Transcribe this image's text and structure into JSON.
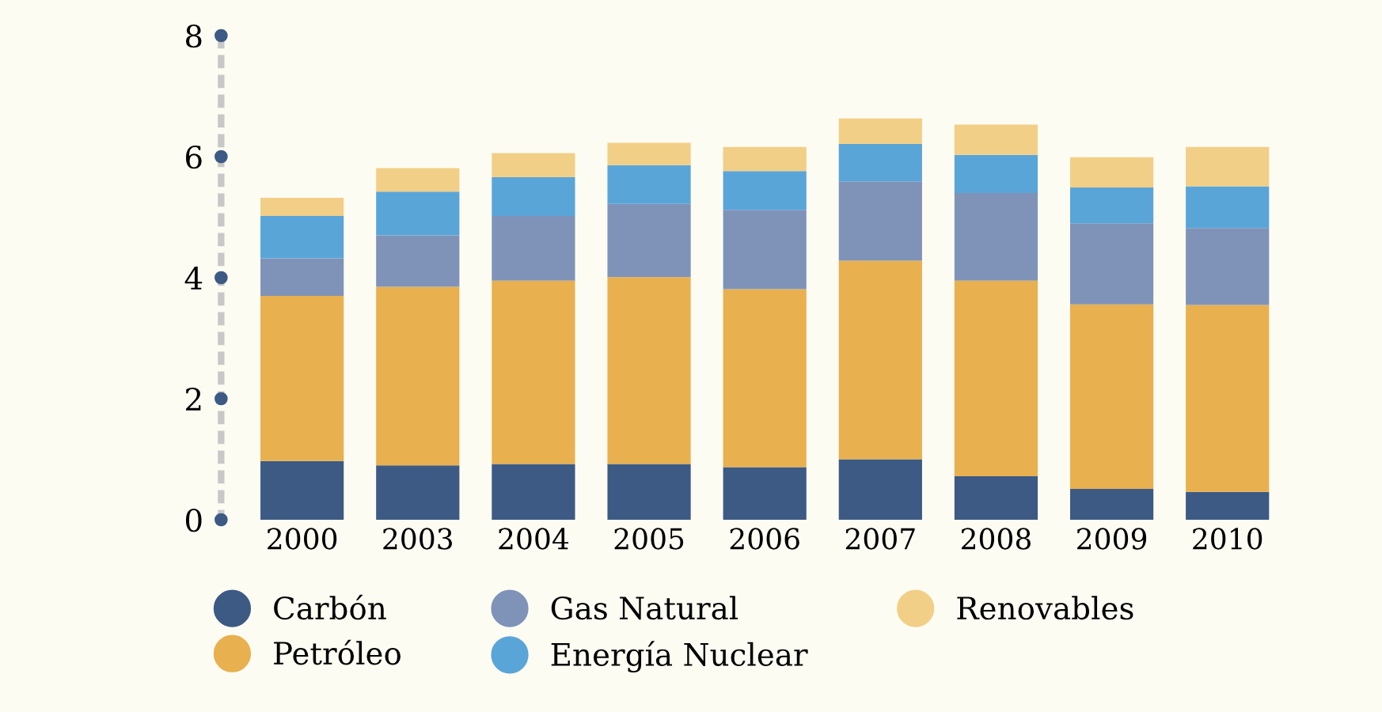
{
  "chart_data": {
    "type": "bar",
    "stacked": true,
    "categories": [
      "2000",
      "2003",
      "2004",
      "2005",
      "2006",
      "2007",
      "2008",
      "2009",
      "2010"
    ],
    "series": [
      {
        "name": "Carbón",
        "color": "#3d5a84",
        "values": [
          0.97,
          0.9,
          0.92,
          0.92,
          0.87,
          1.0,
          0.72,
          0.51,
          0.46
        ]
      },
      {
        "name": "Petróleo",
        "color": "#e8b04f",
        "values": [
          2.73,
          2.95,
          3.03,
          3.09,
          2.94,
          3.28,
          3.23,
          3.05,
          3.09
        ]
      },
      {
        "name": "Gas Natural",
        "color": "#7f93b8",
        "values": [
          0.62,
          0.85,
          1.07,
          1.21,
          1.31,
          1.31,
          1.45,
          1.34,
          1.27
        ]
      },
      {
        "name": "Energía Nuclear",
        "color": "#5aa5d8",
        "values": [
          0.7,
          0.72,
          0.64,
          0.64,
          0.64,
          0.62,
          0.63,
          0.59,
          0.69
        ]
      },
      {
        "name": "Renovables",
        "color": "#f2cf86",
        "values": [
          0.3,
          0.39,
          0.4,
          0.37,
          0.4,
          0.42,
          0.5,
          0.5,
          0.65
        ]
      }
    ],
    "ylim": [
      0,
      8
    ],
    "yticks": [
      0,
      2,
      4,
      6,
      8
    ],
    "grid": false,
    "legend": "bottom"
  }
}
